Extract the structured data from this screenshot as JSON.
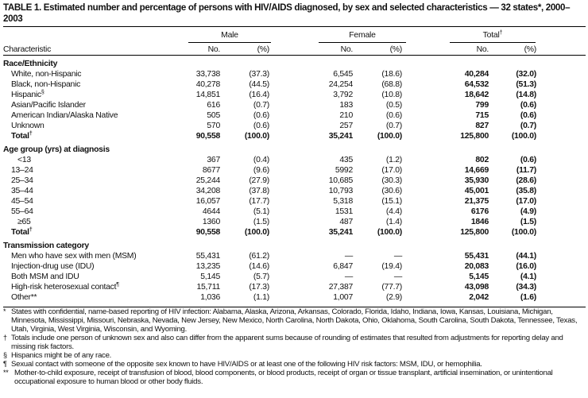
{
  "title": "TABLE 1. Estimated number and percentage of persons with HIV/AIDS diagnosed, by sex and selected characteristics — 32 states*, 2000–2003",
  "groups": {
    "male": "Male",
    "female": "Female",
    "total": "Total",
    "total_mark": "†"
  },
  "columns": {
    "characteristic": "Characteristic",
    "no": "No.",
    "pct": "(%)"
  },
  "sections": [
    {
      "heading": "Race/Ethnicity",
      "rows": [
        {
          "label": "White, non-Hispanic",
          "values": [
            "33,738",
            "(37.3)",
            "6,545",
            "(18.6)",
            "40,284",
            "(32.0)"
          ]
        },
        {
          "label": "Black, non-Hispanic",
          "values": [
            "40,278",
            "(44.5)",
            "24,254",
            "(68.8)",
            "64,532",
            "(51.3)"
          ]
        },
        {
          "label": "Hispanic",
          "mark": "§",
          "values": [
            "14,851",
            "(16.4)",
            "3,792",
            "(10.8)",
            "18,642",
            "(14.8)"
          ]
        },
        {
          "label": "Asian/Pacific Islander",
          "values": [
            "616",
            "(0.7)",
            "183",
            "(0.5)",
            "799",
            "(0.6)"
          ]
        },
        {
          "label": "American Indian/Alaska Native",
          "values": [
            "505",
            "(0.6)",
            "210",
            "(0.6)",
            "715",
            "(0.6)"
          ]
        },
        {
          "label": "Unknown",
          "values": [
            "570",
            "(0.6)",
            "257",
            "(0.7)",
            "827",
            "(0.7)"
          ]
        },
        {
          "label": "Total",
          "mark": "†",
          "total": true,
          "values": [
            "90,558",
            "(100.0)",
            "35,241",
            "(100.0)",
            "125,800",
            "(100.0)"
          ]
        }
      ]
    },
    {
      "heading": "Age group (yrs) at diagnosis",
      "rows": [
        {
          "label": "<13",
          "indent": true,
          "values": [
            "367",
            "(0.4)",
            "435",
            "(1.2)",
            "802",
            "(0.6)"
          ]
        },
        {
          "label": "13–24",
          "values": [
            "8677",
            "(9.6)",
            "5992",
            "(17.0)",
            "14,669",
            "(11.7)"
          ]
        },
        {
          "label": "25–34",
          "values": [
            "25,244",
            "(27.9)",
            "10,685",
            "(30.3)",
            "35,930",
            "(28.6)"
          ]
        },
        {
          "label": "35–44",
          "values": [
            "34,208",
            "(37.8)",
            "10,793",
            "(30.6)",
            "45,001",
            "(35.8)"
          ]
        },
        {
          "label": "45–54",
          "values": [
            "16,057",
            "(17.7)",
            "5,318",
            "(15.1)",
            "21,375",
            "(17.0)"
          ]
        },
        {
          "label": "55–64",
          "values": [
            "4644",
            "(5.1)",
            "1531",
            "(4.4)",
            "6176",
            "(4.9)"
          ]
        },
        {
          "label": "≥65",
          "indent": true,
          "values": [
            "1360",
            "(1.5)",
            "487",
            "(1.4)",
            "1846",
            "(1.5)"
          ]
        },
        {
          "label": "Total",
          "mark": "†",
          "total": true,
          "values": [
            "90,558",
            "(100.0)",
            "35,241",
            "(100.0)",
            "125,800",
            "(100.0)"
          ]
        }
      ]
    },
    {
      "heading": "Transmission category",
      "rows": [
        {
          "label": "Men who have sex with men (MSM)",
          "values": [
            "55,431",
            "(61.2)",
            "—",
            "—",
            "55,431",
            "(44.1)"
          ]
        },
        {
          "label": "Injection-drug use (IDU)",
          "values": [
            "13,235",
            "(14.6)",
            "6,847",
            "(19.4)",
            "20,083",
            "(16.0)"
          ]
        },
        {
          "label": "Both MSM and IDU",
          "values": [
            "5,145",
            "(5.7)",
            "—",
            "—",
            "5,145",
            "(4.1)"
          ]
        },
        {
          "label": "High-risk heterosexual contact",
          "mark": "¶",
          "values": [
            "15,711",
            "(17.3)",
            "27,387",
            "(77.7)",
            "43,098",
            "(34.3)"
          ]
        },
        {
          "label": "Other**",
          "values": [
            "1,036",
            "(1.1)",
            "1,007",
            "(2.9)",
            "2,042",
            "(1.6)"
          ]
        }
      ]
    }
  ],
  "footnotes": [
    {
      "mark": "*",
      "text": "States with confidential, name-based reporting of HIV infection: Alabama, Alaska, Arizona, Arkansas, Colorado, Florida, Idaho, Indiana, Iowa, Kansas, Louisiana, Michigan, Minnesota, Mississippi, Missouri, Nebraska, Nevada, New Jersey, New Mexico, North Carolina, North Dakota, Ohio, Oklahoma, South Carolina, South Dakota, Tennessee, Texas, Utah, Virginia, West Virginia, Wisconsin, and Wyoming."
    },
    {
      "mark": "†",
      "text": "Totals include one person of unknown sex and also can differ from the apparent sums because of rounding of estimates that resulted from adjustments for reporting delay and missing risk factors."
    },
    {
      "mark": "§",
      "text": "Hispanics might be of any race."
    },
    {
      "mark": "¶",
      "text": "Sexual contact with someone of the opposite sex known to have HIV/AIDS or at least one of the following HIV risk factors: MSM, IDU, or hemophilia."
    },
    {
      "mark": "**",
      "text": "Mother-to-child exposure, receipt of transfusion of blood, blood components, or blood products, receipt of organ or tissue transplant, artificial insemination, or unintentional occupational exposure to human blood or other body fluids."
    }
  ]
}
